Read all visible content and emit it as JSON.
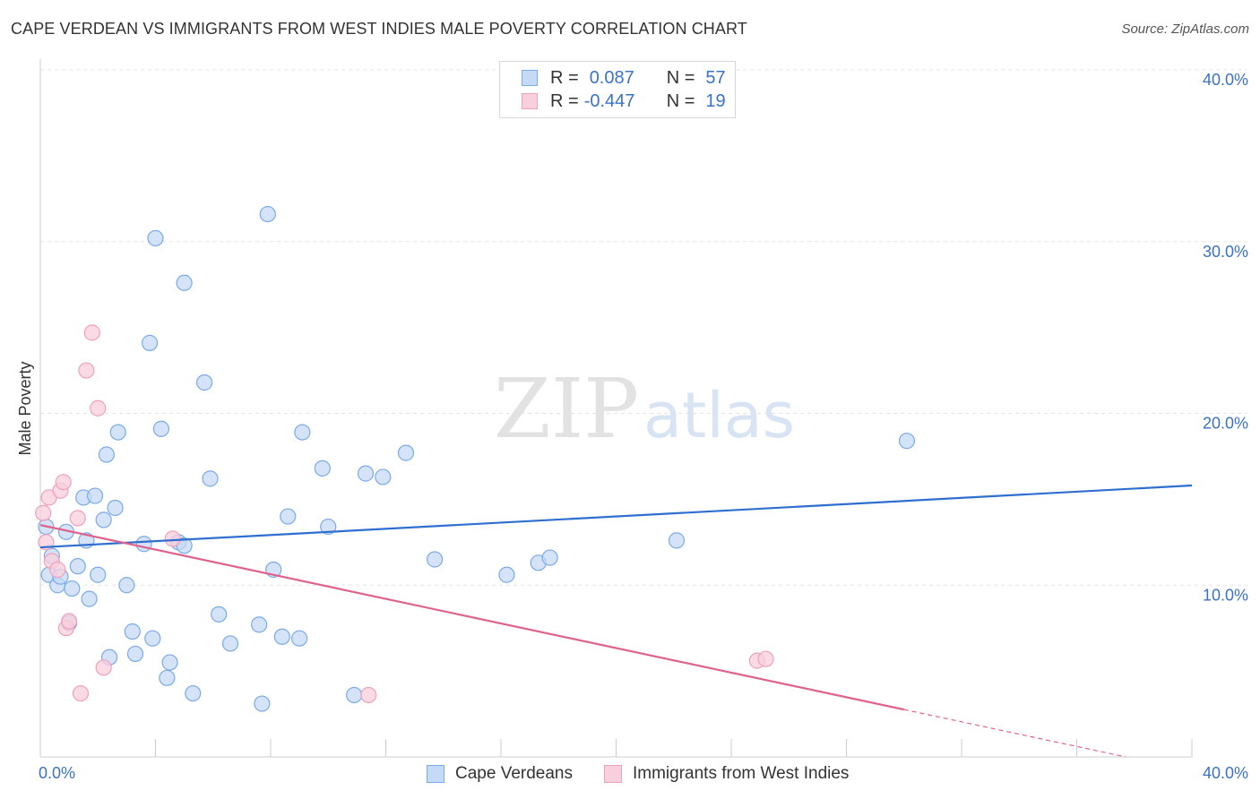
{
  "chart_data": {
    "type": "scatter",
    "title": "CAPE VERDEAN VS IMMIGRANTS FROM WEST INDIES MALE POVERTY CORRELATION CHART",
    "source": "Source: ZipAtlas.com",
    "ylabel": "Male Poverty",
    "xlabel": "",
    "xlim": [
      0,
      40
    ],
    "ylim": [
      0,
      40
    ],
    "x_tick_labels": [
      "0.0%",
      "40.0%"
    ],
    "y_ticks": [
      {
        "value": 10,
        "label": "10.0%"
      },
      {
        "value": 20,
        "label": "20.0%"
      },
      {
        "value": 30,
        "label": "30.0%"
      },
      {
        "value": 40,
        "label": "40.0%"
      }
    ],
    "watermark": {
      "part1": "ZIP",
      "part2": "atlas"
    },
    "legend": [
      {
        "r_label": "R =",
        "r_value": "0.087",
        "n_label": "N =",
        "n_value": "57"
      },
      {
        "r_label": "R =",
        "r_value": "-0.447",
        "n_label": "N =",
        "n_value": "19"
      }
    ],
    "series": [
      {
        "name": "Cape Verdeans",
        "color": "#7aaae8",
        "fill": "#c5daf5",
        "line_color": "#2f6fd0",
        "trend": {
          "x": [
            0,
            40
          ],
          "y": [
            12.2,
            15.8
          ],
          "solid_to": 40
        },
        "points": [
          [
            0.2,
            13.4
          ],
          [
            0.3,
            10.6
          ],
          [
            0.4,
            11.7
          ],
          [
            0.6,
            10.0
          ],
          [
            0.7,
            10.5
          ],
          [
            0.9,
            13.1
          ],
          [
            1.0,
            7.8
          ],
          [
            1.1,
            9.8
          ],
          [
            1.3,
            11.1
          ],
          [
            1.5,
            15.1
          ],
          [
            1.6,
            12.6
          ],
          [
            1.7,
            9.2
          ],
          [
            1.9,
            15.2
          ],
          [
            2.0,
            10.6
          ],
          [
            2.2,
            13.8
          ],
          [
            2.3,
            17.6
          ],
          [
            2.4,
            5.8
          ],
          [
            2.6,
            14.5
          ],
          [
            2.7,
            18.9
          ],
          [
            3.0,
            10.0
          ],
          [
            3.2,
            7.3
          ],
          [
            3.3,
            6.0
          ],
          [
            3.6,
            12.4
          ],
          [
            3.8,
            24.1
          ],
          [
            3.9,
            6.9
          ],
          [
            4.0,
            30.2
          ],
          [
            4.2,
            19.1
          ],
          [
            4.4,
            4.6
          ],
          [
            4.5,
            5.5
          ],
          [
            4.8,
            12.5
          ],
          [
            5.0,
            12.3
          ],
          [
            5.0,
            27.6
          ],
          [
            5.3,
            3.7
          ],
          [
            5.7,
            21.8
          ],
          [
            5.9,
            16.2
          ],
          [
            6.2,
            8.3
          ],
          [
            6.6,
            6.6
          ],
          [
            7.6,
            7.7
          ],
          [
            7.7,
            3.1
          ],
          [
            7.9,
            31.6
          ],
          [
            8.1,
            10.9
          ],
          [
            8.4,
            7.0
          ],
          [
            8.6,
            14.0
          ],
          [
            9.0,
            6.9
          ],
          [
            9.1,
            18.9
          ],
          [
            9.8,
            16.8
          ],
          [
            10.0,
            13.4
          ],
          [
            10.9,
            3.6
          ],
          [
            11.3,
            16.5
          ],
          [
            11.9,
            16.3
          ],
          [
            12.7,
            17.7
          ],
          [
            13.7,
            11.5
          ],
          [
            16.2,
            10.6
          ],
          [
            17.3,
            11.3
          ],
          [
            17.7,
            11.6
          ],
          [
            22.1,
            12.6
          ],
          [
            30.1,
            18.4
          ]
        ]
      },
      {
        "name": "Immigrants from West Indies",
        "color": "#f0a0ba",
        "fill": "#f8cfdc",
        "line_color": "#e0628c",
        "trend": {
          "x": [
            0,
            37.7
          ],
          "y": [
            13.5,
            0
          ],
          "solid_to": 30.0
        },
        "points": [
          [
            0.1,
            14.2
          ],
          [
            0.2,
            12.5
          ],
          [
            0.3,
            15.1
          ],
          [
            0.4,
            11.4
          ],
          [
            0.6,
            10.9
          ],
          [
            0.7,
            15.5
          ],
          [
            0.8,
            16.0
          ],
          [
            0.9,
            7.5
          ],
          [
            1.0,
            7.9
          ],
          [
            1.3,
            13.9
          ],
          [
            1.4,
            3.7
          ],
          [
            1.6,
            22.5
          ],
          [
            1.8,
            24.7
          ],
          [
            2.0,
            20.3
          ],
          [
            2.2,
            5.2
          ],
          [
            4.6,
            12.7
          ],
          [
            11.4,
            3.6
          ],
          [
            24.9,
            5.6
          ],
          [
            25.2,
            5.7
          ]
        ]
      }
    ]
  }
}
